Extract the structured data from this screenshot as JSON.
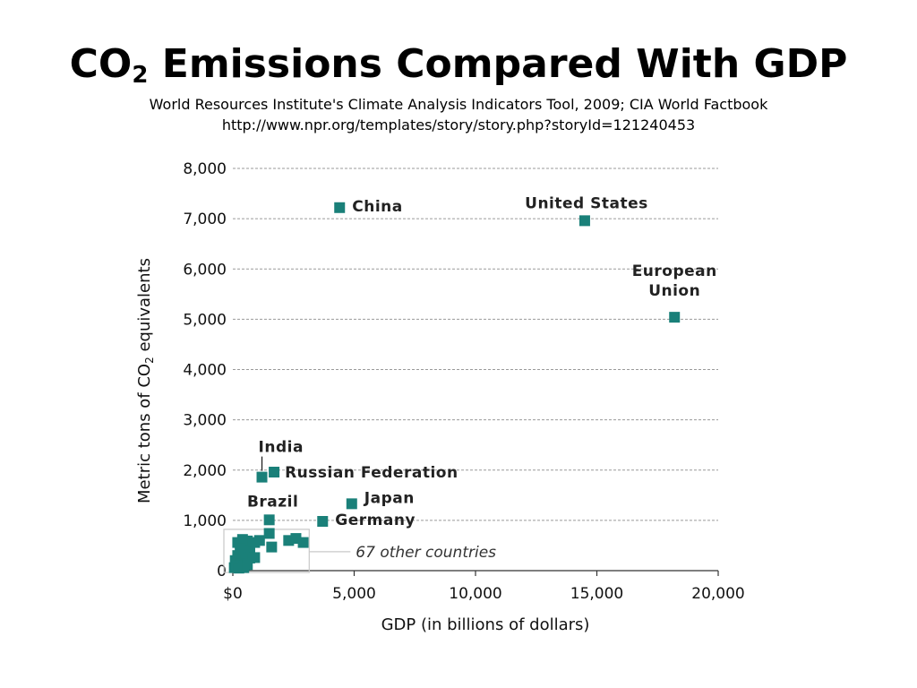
{
  "slide": {
    "title_prefix": "CO",
    "title_sub": "2",
    "title_rest": " Emissions Compared With GDP",
    "source_line": "World Resources Institute's Climate Analysis Indicators Tool, 2009; CIA World Factbook",
    "url_line": "http://www.npr.org/templates/story/story.php?storyId=121240453"
  },
  "chart_data": {
    "type": "scatter",
    "title": "",
    "xlabel": "GDP (in billions of dollars)",
    "ylabel_prefix": "Metric tons of CO",
    "ylabel_sub": "2",
    "ylabel_suffix": " equivalents",
    "xlim": [
      0,
      20000
    ],
    "ylim": [
      0,
      8000
    ],
    "x_ticks": [
      {
        "value": 0,
        "label": "$0"
      },
      {
        "value": 5000,
        "label": "5,000"
      },
      {
        "value": 10000,
        "label": "10,000"
      },
      {
        "value": 15000,
        "label": "15,000"
      },
      {
        "value": 20000,
        "label": "20,000"
      }
    ],
    "y_ticks": [
      {
        "value": 0,
        "label": "0"
      },
      {
        "value": 1000,
        "label": "1,000"
      },
      {
        "value": 2000,
        "label": "2,000"
      },
      {
        "value": 3000,
        "label": "3,000"
      },
      {
        "value": 4000,
        "label": "4,000"
      },
      {
        "value": 5000,
        "label": "5,000"
      },
      {
        "value": 6000,
        "label": "6,000"
      },
      {
        "value": 7000,
        "label": "7,000"
      },
      {
        "value": 8000,
        "label": "8,000"
      }
    ],
    "grid": true,
    "marker_color": "#1a8079",
    "points": [
      {
        "label": "China",
        "x": 4400,
        "y": 7220
      },
      {
        "label": "United States",
        "x": 14500,
        "y": 6960
      },
      {
        "label": "European Union",
        "x": 18200,
        "y": 5040
      },
      {
        "label": "India",
        "x": 1200,
        "y": 1860
      },
      {
        "label": "Russian Federation",
        "x": 1700,
        "y": 1960
      },
      {
        "label": "Japan",
        "x": 4900,
        "y": 1330
      },
      {
        "label": "Germany",
        "x": 3700,
        "y": 980
      },
      {
        "label": "Brazil",
        "x": 1500,
        "y": 1010
      }
    ],
    "others_label": "67 other countries",
    "others": [
      {
        "x": 1500,
        "y": 740
      },
      {
        "x": 1600,
        "y": 470
      },
      {
        "x": 1100,
        "y": 600
      },
      {
        "x": 2300,
        "y": 600
      },
      {
        "x": 2600,
        "y": 640
      },
      {
        "x": 2900,
        "y": 560
      },
      {
        "x": 900,
        "y": 560
      },
      {
        "x": 700,
        "y": 430
      },
      {
        "x": 600,
        "y": 590
      },
      {
        "x": 400,
        "y": 620
      },
      {
        "x": 200,
        "y": 560
      },
      {
        "x": 500,
        "y": 390
      },
      {
        "x": 300,
        "y": 430
      },
      {
        "x": 900,
        "y": 260
      },
      {
        "x": 700,
        "y": 250
      },
      {
        "x": 400,
        "y": 240
      },
      {
        "x": 200,
        "y": 300
      },
      {
        "x": 100,
        "y": 200
      },
      {
        "x": 300,
        "y": 140
      },
      {
        "x": 500,
        "y": 110
      },
      {
        "x": 150,
        "y": 90
      },
      {
        "x": 60,
        "y": 60
      },
      {
        "x": 250,
        "y": 50
      },
      {
        "x": 450,
        "y": 60
      },
      {
        "x": 600,
        "y": 120
      }
    ]
  }
}
